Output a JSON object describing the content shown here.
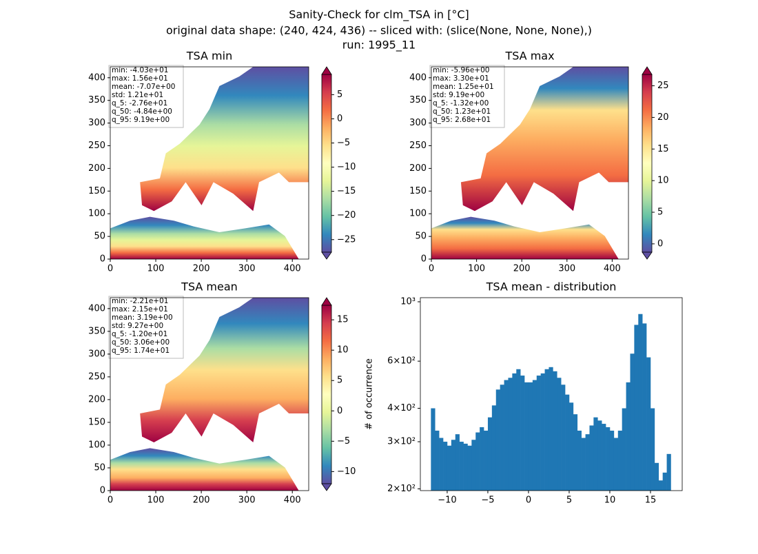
{
  "suptitle": [
    "Sanity-Check for clm_TSA in [°C]",
    "original data shape: (240, 424, 436) -- sliced with: (slice(None, None, None),)",
    "run: 1995_11"
  ],
  "chart_data": [
    {
      "type": "heatmap",
      "title": "TSA min",
      "xlim": [
        0,
        436
      ],
      "ylim": [
        0,
        424
      ],
      "xticks": [
        0,
        100,
        200,
        300,
        400
      ],
      "yticks": [
        0,
        50,
        100,
        150,
        200,
        250,
        300,
        350,
        400
      ],
      "colorbar": {
        "clim": [
          -27.6,
          9.19
        ],
        "ticks": [
          {
            "value": -25,
            "label": "−25"
          },
          {
            "value": -20,
            "label": "−20"
          },
          {
            "value": -15,
            "label": "−15"
          },
          {
            "value": -10,
            "label": "−10"
          },
          {
            "value": -5,
            "label": "−5"
          },
          0,
          5
        ]
      },
      "stats": [
        "min: -4.03e+01",
        "max: 1.56e+01",
        "mean: -7.07e+00",
        "std: 1.21e+01",
        "q_5: -2.76e+01",
        "q_50: -4.84e+00",
        "q_95: 9.19e+00"
      ]
    },
    {
      "type": "heatmap",
      "title": "TSA max",
      "xlim": [
        0,
        436
      ],
      "ylim": [
        0,
        424
      ],
      "xticks": [
        0,
        100,
        200,
        300,
        400
      ],
      "yticks": [
        0,
        50,
        100,
        150,
        200,
        250,
        300,
        350,
        400
      ],
      "colorbar": {
        "clim": [
          -1.32,
          26.8
        ],
        "ticks": [
          0,
          5,
          10,
          15,
          20,
          25
        ]
      },
      "stats": [
        "min: -5.96e+00",
        "max: 3.30e+01",
        "mean: 1.25e+01",
        "std: 9.19e+00",
        "q_5: -1.32e+00",
        "q_50: 1.23e+01",
        "q_95: 2.68e+01"
      ]
    },
    {
      "type": "heatmap",
      "title": "TSA mean",
      "xlim": [
        0,
        436
      ],
      "ylim": [
        0,
        424
      ],
      "xticks": [
        0,
        100,
        200,
        300,
        400
      ],
      "yticks": [
        0,
        50,
        100,
        150,
        200,
        250,
        300,
        350,
        400
      ],
      "colorbar": {
        "clim": [
          -12.0,
          17.4
        ],
        "ticks": [
          {
            "value": -10,
            "label": "−10"
          },
          {
            "value": -5,
            "label": "−5"
          },
          0,
          5,
          10,
          15
        ]
      },
      "stats": [
        "min: -2.21e+01",
        "max: 2.15e+01",
        "mean: 3.19e+00",
        "std: 9.27e+00",
        "q_5: -1.20e+01",
        "q_50: 3.06e+00",
        "q_95: 1.74e+01"
      ]
    },
    {
      "type": "histogram",
      "title": "TSA mean - distribution",
      "ylabel": "# of occurrence",
      "color": "#1f77b4",
      "log_y": true,
      "bins": [
        -12,
        -11.5,
        -11,
        -10.5,
        -10,
        -9.5,
        -9,
        -8.5,
        -8,
        -7.5,
        -7,
        -6.5,
        -6,
        -5.5,
        -5,
        -4.5,
        -4,
        -3.5,
        -3,
        -2.5,
        -2,
        -1.5,
        -1,
        -0.5,
        0,
        0.5,
        1,
        1.5,
        2,
        2.5,
        3,
        3.5,
        4,
        4.5,
        5,
        5.5,
        6,
        6.5,
        7,
        7.5,
        8,
        8.5,
        9,
        9.5,
        10,
        10.5,
        11,
        11.5,
        12,
        12.5,
        13,
        13.5,
        14,
        14.5,
        15,
        15.5,
        16,
        16.5,
        17,
        17.5
      ],
      "counts": [
        400,
        330,
        310,
        300,
        290,
        305,
        320,
        300,
        295,
        290,
        305,
        325,
        340,
        330,
        370,
        410,
        470,
        490,
        510,
        520,
        540,
        560,
        530,
        500,
        500,
        510,
        530,
        540,
        560,
        570,
        550,
        520,
        490,
        450,
        420,
        380,
        330,
        310,
        320,
        345,
        370,
        360,
        350,
        340,
        330,
        310,
        330,
        400,
        500,
        640,
        820,
        900,
        830,
        620,
        400,
        250,
        215,
        230,
        270
      ],
      "xlim": [
        -13.3,
        18.9
      ],
      "ylim": [
        197,
        1036
      ],
      "xticks": [
        {
          "value": -10,
          "label": "−10"
        },
        {
          "value": -5,
          "label": "−5"
        },
        0,
        5,
        10,
        15
      ],
      "yticks": [
        {
          "value": 200,
          "label": "2×10²"
        },
        {
          "value": 300,
          "label": "3×10²"
        },
        {
          "value": 400,
          "label": "4×10²"
        },
        {
          "value": 600,
          "label": "6×10²"
        },
        {
          "value": 1000,
          "label": "10³"
        }
      ]
    }
  ]
}
